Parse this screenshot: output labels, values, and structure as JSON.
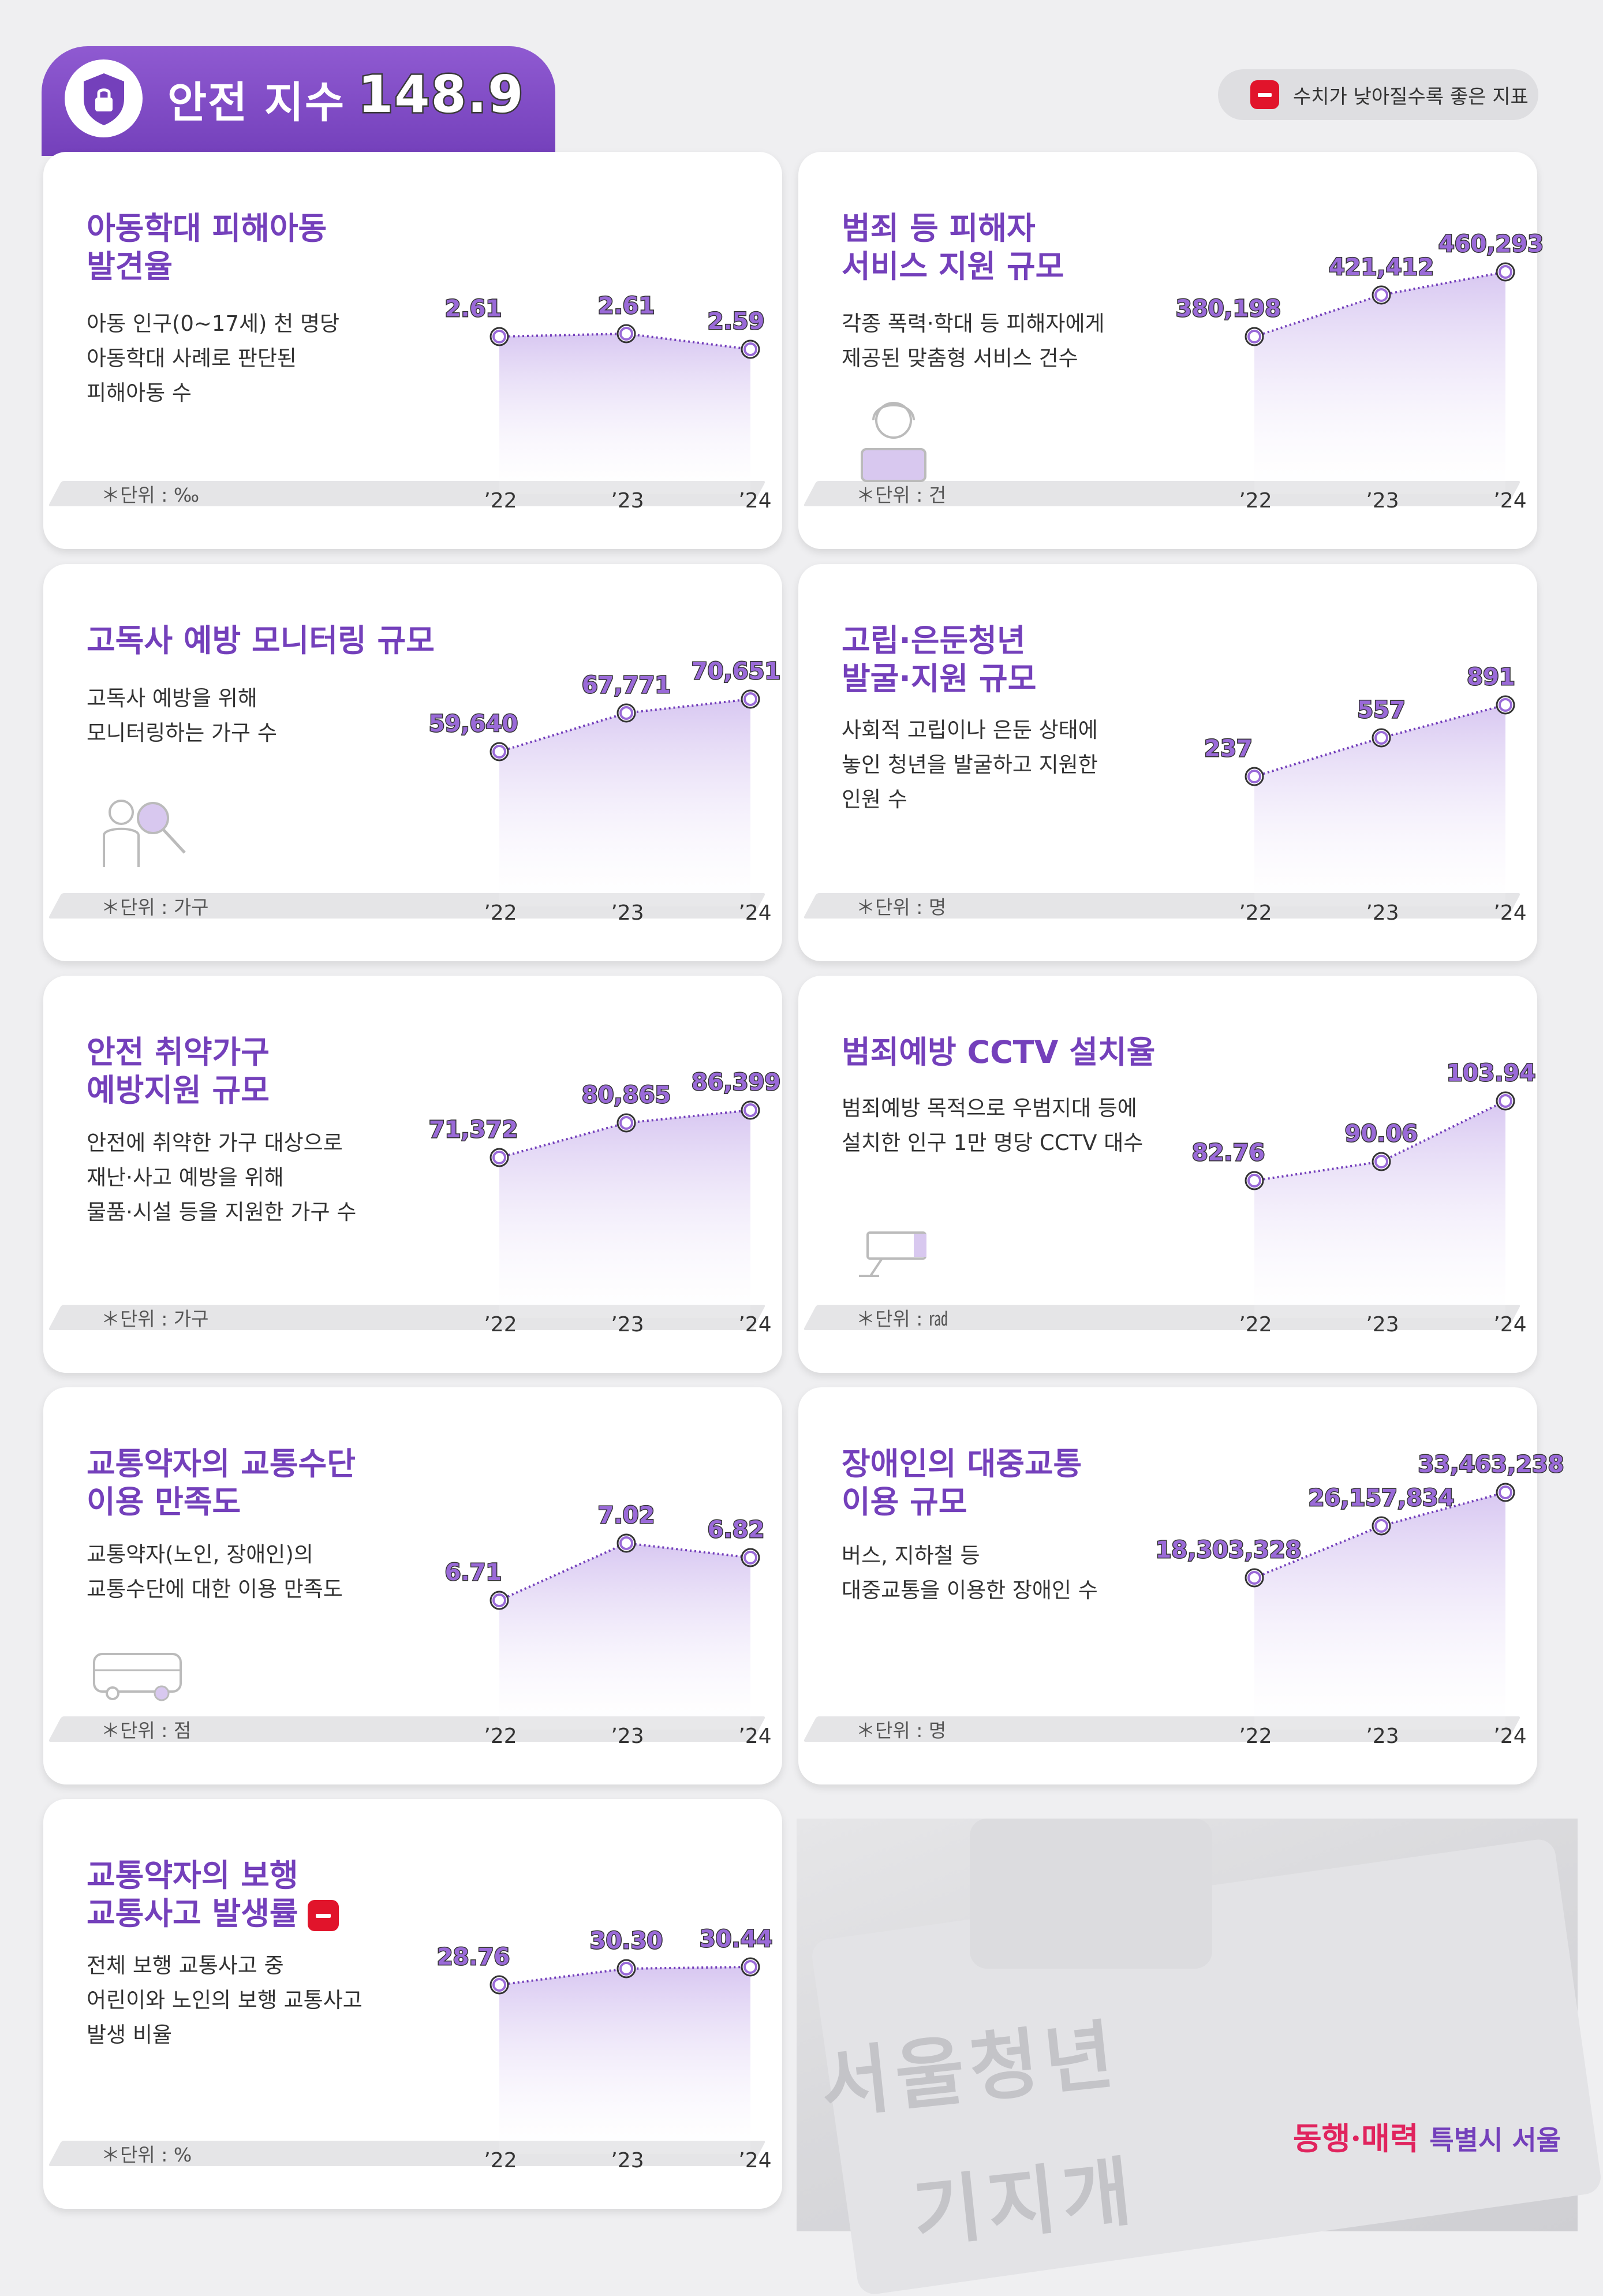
{
  "header": {
    "title": "안전 지수",
    "score": "148.9"
  },
  "legend": {
    "text": "수치가 낮아질수록 좋은 지표"
  },
  "brand": {
    "part1": "동행·매력",
    "part2": "특별시 서울"
  },
  "colors": {
    "accent": "#7440bb",
    "value_label": "#9a6ad8",
    "negative_badge": "#e1142b"
  },
  "cards": [
    {
      "title": "아동학대 피해아동\n발견율",
      "description": "아동 인구(0~17세) 천 명당\n아동학대 사례로 판단된\n피해아동 수",
      "unit": "＊단위 : ‰",
      "icon": null,
      "negative": false
    },
    {
      "title": "범죄 등 피해자\n서비스 지원 규모",
      "description": "각종 폭력·학대 등 피해자에게\n제공된 맞춤형 서비스 건수",
      "unit": "＊단위 : 건",
      "icon": "counselor-headset-icon",
      "negative": false
    },
    {
      "title": "고독사 예방 모니터링 규모",
      "description": "고독사 예방을 위해\n모니터링하는 가구 수",
      "unit": "＊단위 : 가구",
      "icon": "people-magnifier-icon",
      "negative": false
    },
    {
      "title": "고립·은둔청년\n발굴·지원 규모",
      "description": "사회적 고립이나 은둔 상태에\n놓인 청년을 발굴하고 지원한\n인원 수",
      "unit": "＊단위 : 명",
      "icon": null,
      "negative": false
    },
    {
      "title": "안전 취약가구\n예방지원 규모",
      "description": "안전에 취약한 가구 대상으로\n재난·사고 예방을 위해\n물품·시설 등을 지원한 가구 수",
      "unit": "＊단위 : 가구",
      "icon": null,
      "negative": false
    },
    {
      "title": "범죄예방 CCTV 설치율",
      "description": "범죄예방 목적으로 우범지대 등에\n설치한 인구 1만 명당 CCTV 대수",
      "unit": "＊단위 : ㎭",
      "icon": "cctv-camera-icon",
      "negative": false
    },
    {
      "title": "교통약자의 교통수단\n이용 만족도",
      "description": "교통약자(노인, 장애인)의\n교통수단에 대한 이용 만족도",
      "unit": "＊단위 : 점",
      "icon": "bus-icon",
      "negative": false
    },
    {
      "title": "장애인의 대중교통\n이용 규모",
      "description": "버스, 지하철 등\n대중교통을 이용한 장애인 수",
      "unit": "＊단위 : 명",
      "icon": null,
      "negative": false
    },
    {
      "title": "교통약자의 보행\n교통사고 발생률",
      "description": "전체 보행 교통사고 중\n어린이와 노인의 보행 교통사고\n발생 비율",
      "unit": "＊단위 : %",
      "icon": null,
      "negative": true
    }
  ],
  "chart_data": [
    {
      "type": "area",
      "x": [
        "’22",
        "’23",
        "’24"
      ],
      "values": [
        2.61,
        2.61,
        2.59
      ],
      "labels": [
        "2.61",
        "2.61",
        "2.59"
      ]
    },
    {
      "type": "area",
      "x": [
        "’22",
        "’23",
        "’24"
      ],
      "values": [
        380198,
        421412,
        460293
      ],
      "labels": [
        "380,198",
        "421,412",
        "460,293"
      ]
    },
    {
      "type": "area",
      "x": [
        "’22",
        "’23",
        "’24"
      ],
      "values": [
        59640,
        67771,
        70651
      ],
      "labels": [
        "59,640",
        "67,771",
        "70,651"
      ]
    },
    {
      "type": "area",
      "x": [
        "’22",
        "’23",
        "’24"
      ],
      "values": [
        237,
        557,
        891
      ],
      "labels": [
        "237",
        "557",
        "891"
      ]
    },
    {
      "type": "area",
      "x": [
        "’22",
        "’23",
        "’24"
      ],
      "values": [
        71372,
        80865,
        86399
      ],
      "labels": [
        "71,372",
        "80,865",
        "86,399"
      ]
    },
    {
      "type": "area",
      "x": [
        "’22",
        "’23",
        "’24"
      ],
      "values": [
        82.76,
        90.06,
        103.94
      ],
      "labels": [
        "82.76",
        "90.06",
        "103.94"
      ]
    },
    {
      "type": "area",
      "x": [
        "’22",
        "’23",
        "’24"
      ],
      "values": [
        6.71,
        7.02,
        6.82
      ],
      "labels": [
        "6.71",
        "7.02",
        "6.82"
      ]
    },
    {
      "type": "area",
      "x": [
        "’22",
        "’23",
        "’24"
      ],
      "values": [
        18303328,
        26157834,
        33463238
      ],
      "labels": [
        "18,303,328",
        "26,157,834",
        "33,463,238"
      ]
    },
    {
      "type": "area",
      "x": [
        "’22",
        "’23",
        "’24"
      ],
      "values": [
        28.76,
        30.3,
        30.44
      ],
      "labels": [
        "28.76",
        "30.30",
        "30.44"
      ]
    }
  ]
}
